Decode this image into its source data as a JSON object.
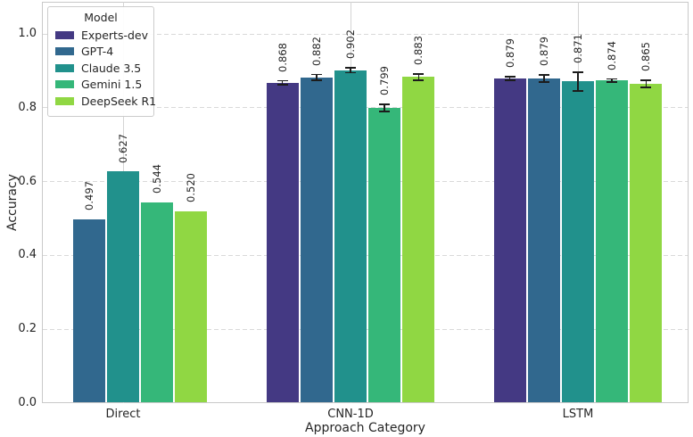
{
  "figure": {
    "xlabel": "Approach Category",
    "ylabel": "Accuracy"
  },
  "legend": {
    "title": "Model"
  },
  "chart_data": {
    "type": "bar",
    "title": "",
    "xlabel": "Approach Category",
    "ylabel": "Accuracy",
    "categories": [
      "Direct",
      "CNN-1D",
      "LSTM"
    ],
    "yticks": [
      0.0,
      0.2,
      0.4,
      0.6,
      0.8,
      1.0
    ],
    "ylim": [
      0,
      1.087
    ],
    "grid": true,
    "legend_position": "upper left",
    "legend_title": "Model",
    "bar_value_labels": true,
    "bar_label_rotation": 90,
    "series": [
      {
        "name": "Experts-dev",
        "color": "#443983",
        "values": [
          null,
          0.868,
          0.879
        ],
        "errors": [
          null,
          0.005,
          0.005
        ]
      },
      {
        "name": "GPT-4",
        "color": "#31688e",
        "values": [
          0.497,
          0.882,
          0.879
        ],
        "errors": [
          null,
          0.008,
          0.009
        ]
      },
      {
        "name": "Claude 3.5",
        "color": "#21918c",
        "values": [
          0.627,
          0.902,
          0.871
        ],
        "errors": [
          null,
          0.007,
          0.025
        ]
      },
      {
        "name": "Gemini 1.5",
        "color": "#35b779",
        "values": [
          0.544,
          0.799,
          0.874
        ],
        "errors": [
          null,
          0.01,
          0.004
        ]
      },
      {
        "name": "DeepSeek R1",
        "color": "#90d743",
        "values": [
          0.52,
          0.883,
          0.865
        ],
        "errors": [
          null,
          0.008,
          0.01
        ]
      }
    ]
  }
}
